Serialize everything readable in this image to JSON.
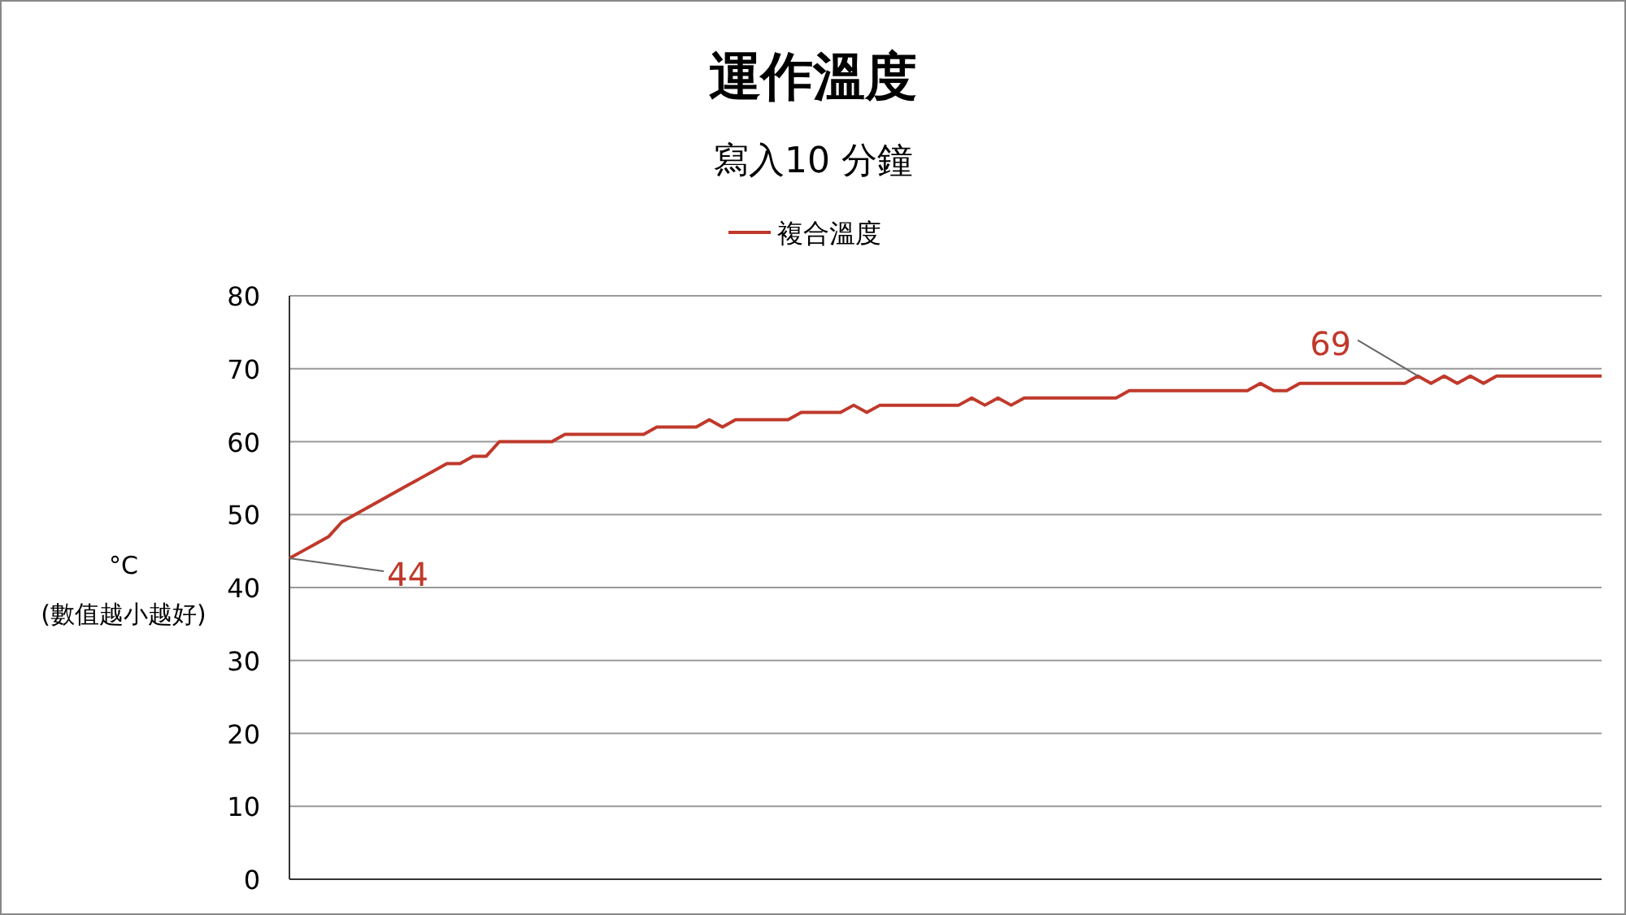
{
  "chart_data": {
    "type": "line",
    "title": "運作溫度",
    "subtitle": "寫入10 分鐘",
    "ylabel": "°C\n(數值越小越好)",
    "categories": [
      null,
      null,
      null,
      null,
      null,
      null,
      null,
      null,
      null,
      null,
      null,
      null,
      null,
      null,
      null,
      null,
      null,
      null,
      null,
      null,
      null,
      null,
      null,
      null,
      null,
      null,
      null,
      null,
      null,
      null,
      null,
      null,
      null,
      null,
      null,
      null,
      null,
      null,
      null,
      null,
      null,
      null,
      null,
      null,
      null,
      null,
      null,
      null,
      null,
      null,
      null,
      null,
      null,
      null,
      null,
      null,
      null,
      null,
      null,
      null,
      null,
      null,
      null,
      null,
      null,
      null,
      null,
      null,
      null,
      null,
      null,
      null,
      null,
      null,
      null,
      null,
      null,
      null,
      null,
      null,
      null,
      null,
      null,
      null,
      null,
      null,
      null,
      null,
      null,
      null,
      null,
      null,
      null,
      null,
      null,
      null,
      null,
      null,
      null,
      null,
      null
    ],
    "series": [
      {
        "name": "複合溫度",
        "color": "#c0392b",
        "values": [
          44,
          45,
          46,
          47,
          49,
          50,
          51,
          52,
          53,
          54,
          55,
          56,
          57,
          57,
          58,
          58,
          60,
          60,
          60,
          60,
          60,
          61,
          61,
          61,
          61,
          61,
          61,
          61,
          62,
          62,
          62,
          62,
          63,
          62,
          63,
          63,
          63,
          63,
          63,
          64,
          64,
          64,
          64,
          65,
          64,
          65,
          65,
          65,
          65,
          65,
          65,
          65,
          66,
          65,
          66,
          65,
          66,
          66,
          66,
          66,
          66,
          66,
          66,
          66,
          67,
          67,
          67,
          67,
          67,
          67,
          67,
          67,
          67,
          67,
          68,
          67,
          67,
          68,
          68,
          68,
          68,
          68,
          68,
          68,
          68,
          68,
          69,
          68,
          69,
          68,
          69,
          68,
          69,
          69,
          69,
          69,
          69,
          69,
          69,
          69,
          69
        ]
      }
    ],
    "ylim": [
      0,
      80
    ],
    "yticks": [
      0,
      10,
      20,
      30,
      40,
      50,
      60,
      70,
      80
    ],
    "grid": "y",
    "legend": "top",
    "marker": "none",
    "line_style": "solid",
    "annotations": [
      "44",
      "69"
    ]
  }
}
